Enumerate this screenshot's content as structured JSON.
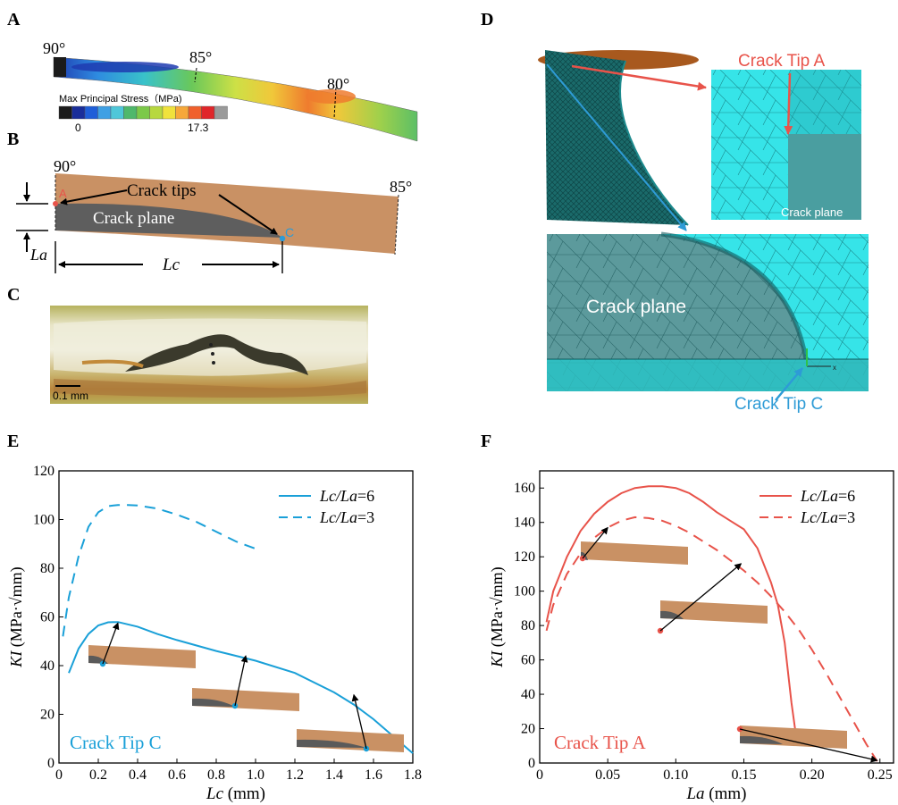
{
  "panels": {
    "A": {
      "label": "A",
      "angles": [
        "90°",
        "85°",
        "80°"
      ],
      "colorbar_title": "Max Principal Stress（MPa)",
      "colorbar_min": "0",
      "colorbar_max": "17.3",
      "colorbar_colors": [
        "#1b1b1b",
        "#1a2e9a",
        "#1f5ed8",
        "#3fa0e4",
        "#4fc7d9",
        "#4fb86c",
        "#7cc94a",
        "#b7d83f",
        "#f0e23c",
        "#f6a83a",
        "#f0602c",
        "#e0262a",
        "#9a9a9a"
      ]
    },
    "B": {
      "label": "B",
      "angle_left": "90°",
      "angle_right": "85°",
      "crack_tips": "Crack tips",
      "crack_plane": "Crack plane",
      "tip_a": "A",
      "tip_c": "C",
      "la": "La",
      "lc": "Lc"
    },
    "C": {
      "label": "C",
      "scale": "0.1 mm"
    },
    "D": {
      "label": "D",
      "tip_a": "Crack Tip A",
      "tip_c": "Crack Tip C",
      "crack_plane": "Crack plane",
      "crack_plane_inset": "Crack plane"
    },
    "E": {
      "label": "E",
      "corner_text": "Crack Tip C",
      "ylabel_prefix": "KI (MPa·",
      "ylabel_root": "mm",
      "ylabel_suffix": ")",
      "xlabel": "Lc (mm)"
    },
    "F": {
      "label": "F",
      "corner_text": "Crack Tip A",
      "ylabel_prefix": "KI (MPa·",
      "ylabel_root": "mm",
      "ylabel_suffix": ")",
      "xlabel": "La (mm)"
    }
  },
  "chart_data": [
    {
      "type": "line",
      "panel": "E",
      "xlabel": "Lc (mm)",
      "ylabel": "KI (MPa·√mm)",
      "xlim": [
        0,
        1.8
      ],
      "ylim": [
        0,
        120
      ],
      "xticks": [
        "0",
        "0.2",
        "0.4",
        "0.6",
        "0.8",
        "1.0",
        "1.2",
        "1.4",
        "1.6",
        "1.8"
      ],
      "yticks": [
        "0",
        "20",
        "40",
        "60",
        "80",
        "100",
        "120"
      ],
      "legend_position": "top-right",
      "color": "#1aa0d8",
      "series": [
        {
          "name": "Lc/La=6",
          "style": "solid",
          "x": [
            0.05,
            0.1,
            0.15,
            0.2,
            0.25,
            0.3,
            0.4,
            0.5,
            0.6,
            0.8,
            1.0,
            1.2,
            1.4,
            1.5,
            1.6,
            1.7,
            1.75,
            1.8
          ],
          "y": [
            37,
            47,
            53,
            56.5,
            57.8,
            57.9,
            56,
            53,
            50.5,
            46,
            42,
            37,
            29,
            24,
            18,
            11,
            7.5,
            4
          ]
        },
        {
          "name": "Lc/La=3",
          "style": "dashed",
          "x": [
            0.02,
            0.05,
            0.1,
            0.15,
            0.2,
            0.25,
            0.3,
            0.35,
            0.4,
            0.5,
            0.6,
            0.7,
            0.8,
            0.9,
            1.0
          ],
          "y": [
            52,
            68,
            85,
            97,
            103,
            105.5,
            106,
            106,
            105.8,
            104.5,
            102,
            99,
            95,
            91,
            88
          ]
        }
      ]
    },
    {
      "type": "line",
      "panel": "F",
      "xlabel": "La (mm)",
      "ylabel": "KI (MPa·√mm)",
      "xlim": [
        0,
        0.26
      ],
      "ylim": [
        0,
        170
      ],
      "xticks": [
        "0",
        "0.05",
        "0.10",
        "0.15",
        "0.20",
        "0.25"
      ],
      "yticks": [
        "0",
        "20",
        "40",
        "60",
        "80",
        "100",
        "120",
        "140",
        "160"
      ],
      "legend_position": "top-right",
      "color": "#e8534a",
      "series": [
        {
          "name": "Lc/La=6",
          "style": "solid",
          "x": [
            0.005,
            0.01,
            0.02,
            0.03,
            0.04,
            0.05,
            0.06,
            0.07,
            0.08,
            0.09,
            0.1,
            0.11,
            0.12,
            0.13,
            0.14,
            0.15,
            0.16,
            0.17,
            0.175,
            0.18,
            0.185,
            0.188
          ],
          "y": [
            82,
            100,
            120,
            135,
            145,
            152,
            157,
            160,
            161,
            161,
            160,
            157,
            152,
            146,
            141,
            136,
            125,
            105,
            92,
            70,
            35,
            18
          ]
        },
        {
          "name": "Lc/La=3",
          "style": "dashed",
          "x": [
            0.005,
            0.01,
            0.02,
            0.03,
            0.04,
            0.05,
            0.06,
            0.07,
            0.08,
            0.09,
            0.1,
            0.11,
            0.12,
            0.13,
            0.14,
            0.15,
            0.16,
            0.17,
            0.18,
            0.19,
            0.2,
            0.21,
            0.22,
            0.23,
            0.24,
            0.248
          ],
          "y": [
            77,
            92,
            110,
            122,
            131,
            137,
            141,
            143,
            142.5,
            141,
            138,
            134,
            129,
            124,
            118,
            112,
            105,
            97,
            88,
            78,
            66,
            53,
            39,
            25,
            11,
            1
          ]
        }
      ]
    }
  ]
}
